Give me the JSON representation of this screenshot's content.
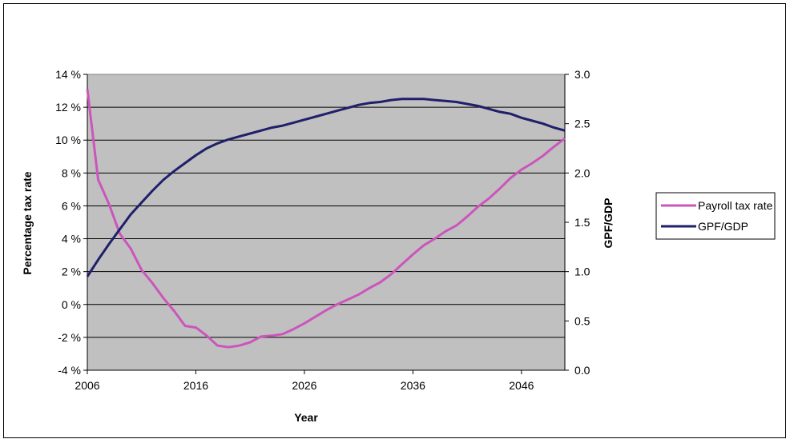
{
  "chart_data": {
    "type": "line",
    "xlabel": "Year",
    "ylabel_left": "Percentage tax rate",
    "ylabel_right": "GPF/GDP",
    "x_ticks": [
      "2006",
      "2016",
      "2026",
      "2036",
      "2046"
    ],
    "y_left_ticks": [
      "14 %",
      "12 %",
      "10 %",
      "8 %",
      "6 %",
      "4 %",
      "2 %",
      "0 %",
      "-2 %",
      "-4 %"
    ],
    "y_right_ticks": [
      "3.0",
      "2.5",
      "2.0",
      "1.5",
      "1.0",
      "0.5",
      "0.0"
    ],
    "ylim_left": [
      -4,
      14
    ],
    "ylim_right": [
      0,
      3
    ],
    "xlim": [
      2006,
      2050
    ],
    "grid": true,
    "legend_position": "right",
    "plot_background": "#c0c0c0",
    "series": [
      {
        "name": "Payroll tax rate",
        "axis": "left",
        "color": "#cc55bb",
        "x": [
          2006,
          2007,
          2008,
          2009,
          2010,
          2011,
          2012,
          2013,
          2014,
          2015,
          2016,
          2017,
          2018,
          2019,
          2020,
          2021,
          2022,
          2023,
          2024,
          2025,
          2026,
          2027,
          2028,
          2029,
          2030,
          2031,
          2032,
          2033,
          2034,
          2035,
          2036,
          2037,
          2038,
          2039,
          2040,
          2041,
          2042,
          2043,
          2044,
          2045,
          2046,
          2047,
          2048,
          2049,
          2050
        ],
        "values": [
          13.1,
          7.6,
          6.1,
          4.3,
          3.4,
          2.1,
          1.3,
          0.4,
          -0.4,
          -1.3,
          -1.4,
          -1.9,
          -2.5,
          -2.6,
          -2.5,
          -2.3,
          -1.95,
          -1.9,
          -1.8,
          -1.5,
          -1.15,
          -0.75,
          -0.35,
          0.0,
          0.3,
          0.6,
          1.0,
          1.35,
          1.85,
          2.45,
          3.05,
          3.6,
          4.0,
          4.45,
          4.8,
          5.35,
          5.95,
          6.45,
          7.05,
          7.7,
          8.2,
          8.6,
          9.05,
          9.6,
          10.1
        ]
      },
      {
        "name": "GPF/GDP",
        "axis": "right",
        "color": "#1f1f6b",
        "x": [
          2006,
          2007,
          2008,
          2009,
          2010,
          2011,
          2012,
          2013,
          2014,
          2015,
          2016,
          2017,
          2018,
          2019,
          2020,
          2021,
          2022,
          2023,
          2024,
          2025,
          2026,
          2027,
          2028,
          2029,
          2030,
          2031,
          2032,
          2033,
          2034,
          2035,
          2036,
          2037,
          2038,
          2039,
          2040,
          2041,
          2042,
          2043,
          2044,
          2045,
          2046,
          2047,
          2048,
          2049,
          2050
        ],
        "values": [
          0.95,
          1.12,
          1.28,
          1.43,
          1.58,
          1.7,
          1.82,
          1.93,
          2.02,
          2.1,
          2.18,
          2.25,
          2.3,
          2.34,
          2.37,
          2.4,
          2.43,
          2.46,
          2.48,
          2.51,
          2.54,
          2.57,
          2.6,
          2.63,
          2.66,
          2.69,
          2.71,
          2.72,
          2.74,
          2.75,
          2.75,
          2.75,
          2.74,
          2.73,
          2.72,
          2.7,
          2.68,
          2.65,
          2.62,
          2.6,
          2.56,
          2.53,
          2.5,
          2.46,
          2.43
        ]
      }
    ]
  }
}
